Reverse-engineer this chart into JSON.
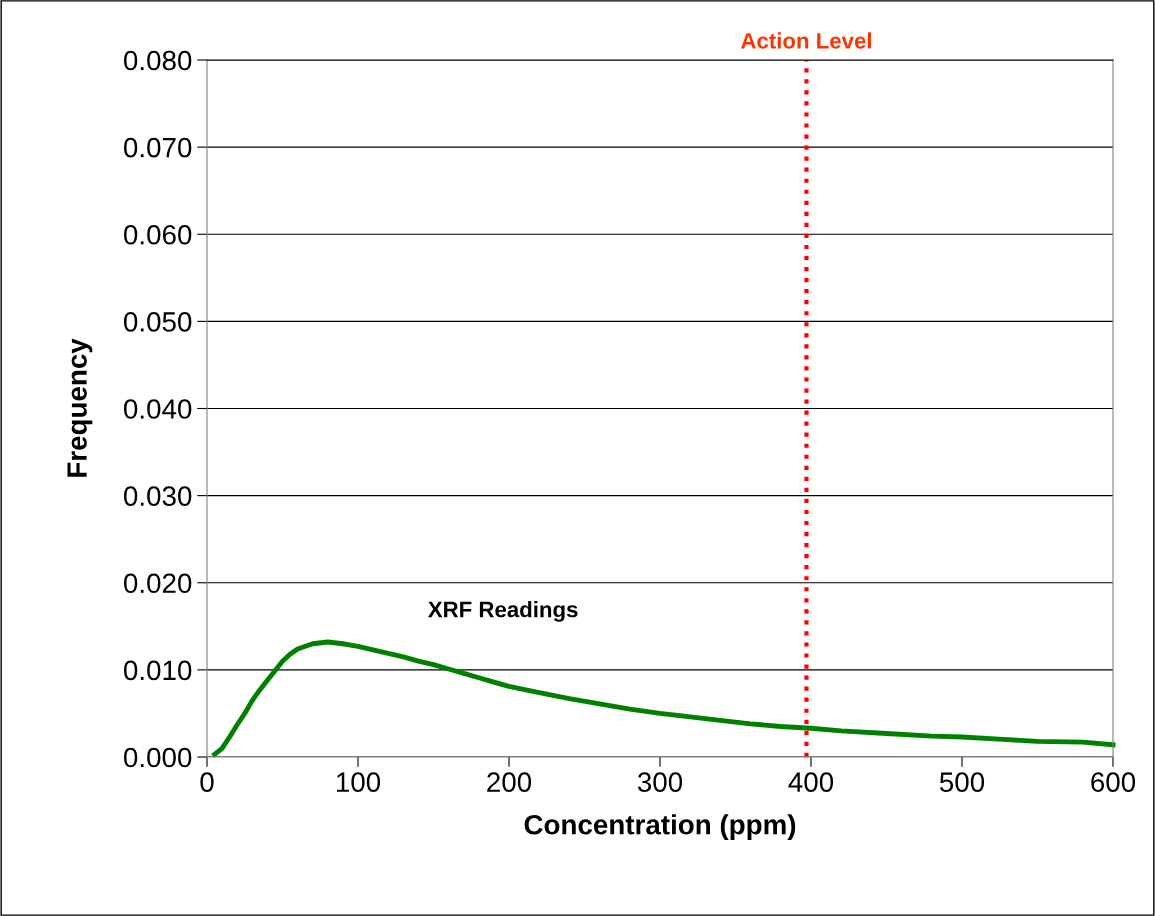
{
  "chart_data": {
    "type": "line",
    "xlabel": "Concentration (ppm)",
    "ylabel": "Frequency",
    "xlim": [
      0,
      600
    ],
    "xticks": [
      0,
      100,
      200,
      300,
      400,
      500,
      600
    ],
    "ylim": [
      0,
      0.08
    ],
    "yticks": [
      {
        "value": 0,
        "label": "0.000"
      },
      {
        "value": 0.01,
        "label": "0.010"
      },
      {
        "value": 0.02,
        "label": "0.020"
      },
      {
        "value": 0.03,
        "label": "0.030"
      },
      {
        "value": 0.04,
        "label": "0.040"
      },
      {
        "value": 0.05,
        "label": "0.050"
      },
      {
        "value": 0.06,
        "label": "0.060"
      },
      {
        "value": 0.07,
        "label": "0.070"
      },
      {
        "value": 0.08,
        "label": "0.080"
      }
    ],
    "grid": "y",
    "marker": "none",
    "line_style": "solid",
    "x": [
      5,
      10,
      15,
      20,
      25,
      30,
      35,
      40,
      45,
      50,
      55,
      60,
      70,
      80,
      90,
      100,
      110,
      120,
      130,
      140,
      150,
      160,
      170,
      180,
      190,
      200,
      220,
      240,
      260,
      280,
      300,
      320,
      340,
      360,
      380,
      400,
      420,
      450,
      480,
      500,
      530,
      550,
      580,
      600
    ],
    "series": [
      {
        "name": "XRF Readings",
        "color": "#008000",
        "values": [
          0.0003,
          0.001,
          0.0023,
          0.0037,
          0.005,
          0.0065,
          0.0077,
          0.0088,
          0.0099,
          0.011,
          0.0118,
          0.0124,
          0.013,
          0.0132,
          0.013,
          0.0127,
          0.0123,
          0.0119,
          0.0115,
          0.011,
          0.0106,
          0.0101,
          0.0096,
          0.0091,
          0.0086,
          0.0081,
          0.0074,
          0.0067,
          0.0061,
          0.0055,
          0.005,
          0.0046,
          0.0042,
          0.0038,
          0.0035,
          0.0033,
          0.003,
          0.0027,
          0.0024,
          0.0023,
          0.002,
          0.0018,
          0.0017,
          0.0014
        ]
      }
    ],
    "ref_lines": [
      {
        "axis": "x",
        "value": 397,
        "label": "Action Level",
        "color": "#ff0000",
        "line_style": "dotted"
      }
    ]
  }
}
